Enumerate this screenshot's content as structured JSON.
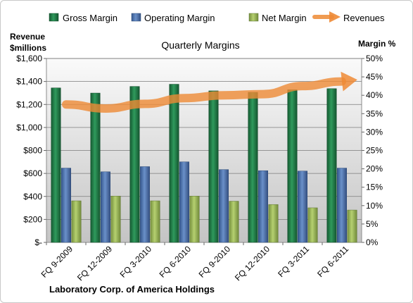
{
  "chart_data": {
    "type": "bar",
    "title": "Quarterly Margins",
    "footer": "Laboratory Corp. of America Holdings",
    "categories": [
      "FQ 9-2009",
      "FQ 12-2009",
      "FQ 3-2010",
      "FQ 6-2010",
      "FQ 9-2010",
      "FQ 12-2010",
      "FQ 3-2011",
      "FQ 6-2011"
    ],
    "y_left": {
      "label_line1": "Revenue",
      "label_line2": "$millions",
      "ylim": [
        0,
        1600
      ],
      "ticks": [
        0,
        200,
        400,
        600,
        800,
        1000,
        1200,
        1400,
        1600
      ],
      "tick_labels": [
        "$-",
        "$200",
        "$400",
        "$600",
        "$800",
        "$1,000",
        "$1,200",
        "$1,400",
        "$1,600"
      ]
    },
    "y_right": {
      "label": "Margin %",
      "ylim": [
        0,
        50
      ],
      "ticks": [
        0,
        5,
        10,
        15,
        20,
        25,
        30,
        35,
        40,
        45,
        50
      ],
      "tick_labels": [
        "0%",
        "5%",
        "10%",
        "15%",
        "20%",
        "25%",
        "30%",
        "35%",
        "40%",
        "45%",
        "50%"
      ]
    },
    "series": [
      {
        "name": "Gross Margin",
        "axis": "right",
        "type": "bar",
        "color": "#1f7a45",
        "values": [
          42.0,
          40.6,
          42.4,
          43.0,
          41.2,
          40.8,
          41.5,
          41.8
        ]
      },
      {
        "name": "Operating Margin",
        "axis": "right",
        "type": "bar",
        "color": "#4a72b0",
        "values": [
          20.2,
          19.2,
          20.6,
          21.9,
          19.8,
          19.5,
          19.4,
          20.2
        ]
      },
      {
        "name": "Net Margin",
        "axis": "right",
        "type": "bar",
        "color": "#9bbb59",
        "values": [
          11.3,
          12.6,
          11.3,
          12.6,
          11.2,
          10.3,
          9.4,
          8.8
        ]
      },
      {
        "name": "Revenues",
        "axis": "left",
        "type": "line",
        "color": "#ee8a35",
        "values": [
          1200,
          1165,
          1205,
          1255,
          1280,
          1290,
          1360,
          1400
        ]
      }
    ],
    "legend_position": "top",
    "grid": true
  }
}
